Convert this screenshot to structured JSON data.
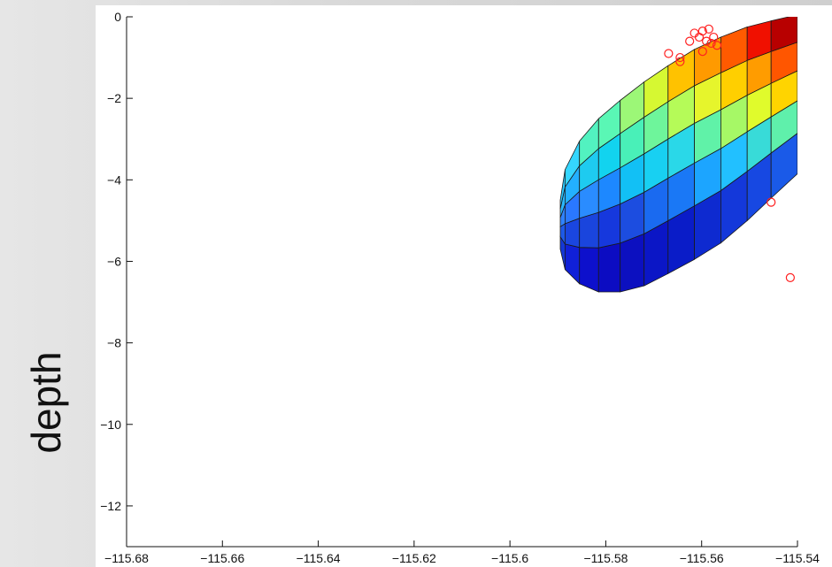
{
  "chart_data": {
    "type": "scatter",
    "title": "",
    "xlabel": "",
    "ylabel": "depth",
    "xlim": [
      -115.68,
      -115.54
    ],
    "ylim": [
      -13,
      0
    ],
    "xticks": [
      "−115.68",
      "−115.66",
      "−115.64",
      "−115.62",
      "−115.6",
      "−115.58",
      "−115.56",
      "−115.54"
    ],
    "yticks": [
      "0",
      "−2",
      "−4",
      "−6",
      "−8",
      "−10",
      "−12"
    ],
    "grid": false,
    "colors": {
      "points": "#ff2020",
      "mesh_edge": "#1a1a1a"
    },
    "points": [
      {
        "x": -115.5669,
        "y": -0.9
      },
      {
        "x": -115.5645,
        "y": -1.0
      },
      {
        "x": -115.5645,
        "y": -1.1
      },
      {
        "x": -115.5625,
        "y": -0.6
      },
      {
        "x": -115.5615,
        "y": -0.4
      },
      {
        "x": -115.5605,
        "y": -0.5
      },
      {
        "x": -115.5598,
        "y": -0.35
      },
      {
        "x": -115.559,
        "y": -0.6
      },
      {
        "x": -115.5585,
        "y": -0.3
      },
      {
        "x": -115.558,
        "y": -0.65
      },
      {
        "x": -115.5575,
        "y": -0.5
      },
      {
        "x": -115.5568,
        "y": -0.7
      },
      {
        "x": -115.5598,
        "y": -0.85
      },
      {
        "x": -115.5455,
        "y": -4.55
      },
      {
        "x": -115.5415,
        "y": -6.4
      }
    ],
    "ellipsoid": {
      "columns": [
        -115.5895,
        -115.5885,
        -115.5855,
        -115.5815,
        -115.577,
        -115.572,
        -115.567,
        -115.5615,
        -115.556,
        -115.5505,
        -115.5455,
        -115.54
      ],
      "bottom": [
        -5.7,
        -6.2,
        -6.55,
        -6.75,
        -6.75,
        -6.6,
        -6.3,
        -5.95,
        -5.55,
        -5.0,
        -4.45,
        -3.85
      ],
      "top": [
        -4.5,
        -3.75,
        -3.05,
        -2.5,
        -2.05,
        -1.6,
        -1.2,
        -0.8,
        -0.5,
        -0.25,
        -0.1,
        0.05
      ],
      "row_colors": [
        [
          "#1438d6",
          "#1e5ae8",
          "#2f82ff",
          "#29b6ff",
          "#27c7ff"
        ],
        [
          "#1020d8",
          "#1a46e0",
          "#2a78ff",
          "#23b0ff",
          "#35d6ff"
        ],
        [
          "#0d10cc",
          "#1a45dd",
          "#2a8cff",
          "#1ecbf0",
          "#52f2c0"
        ],
        [
          "#0c0cc2",
          "#1638dd",
          "#1d88ff",
          "#12d3ef",
          "#5af7b5"
        ],
        [
          "#0c10c0",
          "#1c4de0",
          "#12c0f5",
          "#49f0b8",
          "#9cf777"
        ],
        [
          "#0b16c6",
          "#1a6af0",
          "#18d0f2",
          "#6ef59b",
          "#d6f832"
        ],
        [
          "#0a1cc8",
          "#1a78f6",
          "#2ad8e8",
          "#b5fb58",
          "#ffc200"
        ],
        [
          "#0e2ad0",
          "#1ca5ff",
          "#60f2a8",
          "#e6f52c",
          "#ff9a00"
        ],
        [
          "#1438da",
          "#22c0ff",
          "#a6f866",
          "#ffcf00",
          "#ff5a00"
        ],
        [
          "#1748e2",
          "#38dbd8",
          "#e0fb2c",
          "#ff9c00",
          "#f01000"
        ],
        [
          "#1a5ae8",
          "#5ff0ab",
          "#ffd400",
          "#ff5600",
          "#b80000"
        ]
      ]
    }
  }
}
